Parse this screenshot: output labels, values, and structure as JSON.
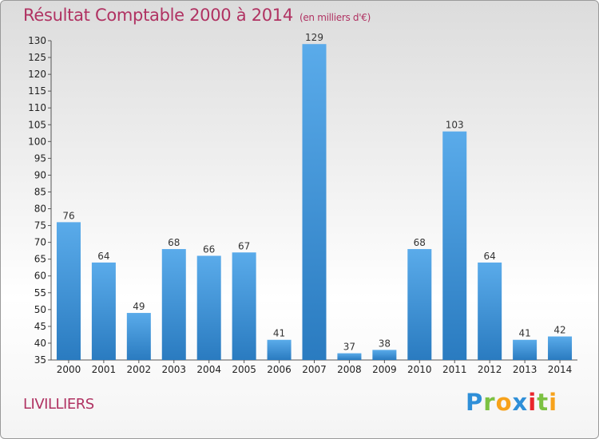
{
  "chart_data": {
    "type": "bar",
    "title": "Résultat Comptable 2000 à 2014",
    "unit_note": "(en milliers d'€)",
    "categories": [
      "2000",
      "2001",
      "2002",
      "2003",
      "2004",
      "2005",
      "2006",
      "2007",
      "2008",
      "2009",
      "2010",
      "2011",
      "2012",
      "2013",
      "2014"
    ],
    "values": [
      76,
      64,
      49,
      68,
      66,
      67,
      41,
      129,
      37,
      38,
      68,
      103,
      64,
      41,
      42
    ],
    "ylim": [
      35,
      130
    ],
    "yticks": [
      35,
      40,
      45,
      50,
      55,
      60,
      65,
      70,
      75,
      80,
      85,
      90,
      95,
      100,
      105,
      110,
      115,
      120,
      125,
      130
    ],
    "xlabel": "",
    "ylabel": "",
    "grid": false,
    "bar_color_light": "#5aabea",
    "bar_color_dark": "#2a7bc0"
  },
  "commune": "LIVILLIERS",
  "logo": {
    "letters": [
      "P",
      "r",
      "o",
      "x",
      "i",
      "t",
      "i"
    ]
  }
}
